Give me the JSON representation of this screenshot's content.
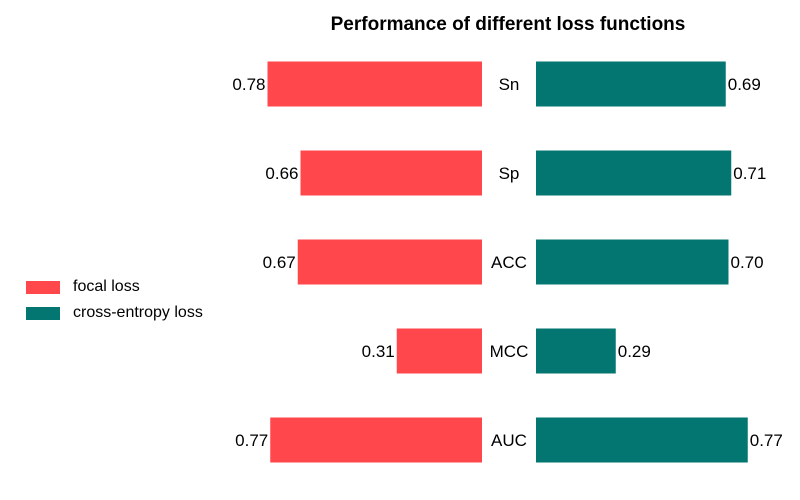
{
  "chart_data": {
    "type": "bar",
    "orientation": "horizontal-butterfly",
    "title": "Performance of different loss functions",
    "categories": [
      "Sn",
      "Sp",
      "ACC",
      "MCC",
      "AUC"
    ],
    "series": [
      {
        "name": "focal loss",
        "values": [
          0.78,
          0.66,
          0.67,
          0.31,
          0.77
        ],
        "labels": [
          "0.78",
          "0.66",
          "0.67",
          "0.31",
          "0.77"
        ],
        "color": "#ff474c",
        "side": "left"
      },
      {
        "name": "cross-entropy loss",
        "values": [
          0.69,
          0.71,
          0.7,
          0.29,
          0.77
        ],
        "labels": [
          "0.69",
          "0.71",
          "0.70",
          "0.29",
          "0.77"
        ],
        "color": "#047672",
        "side": "right"
      }
    ],
    "xlim": [
      0,
      1
    ],
    "axes_visible": false,
    "grid": false,
    "legend_position": "left"
  }
}
